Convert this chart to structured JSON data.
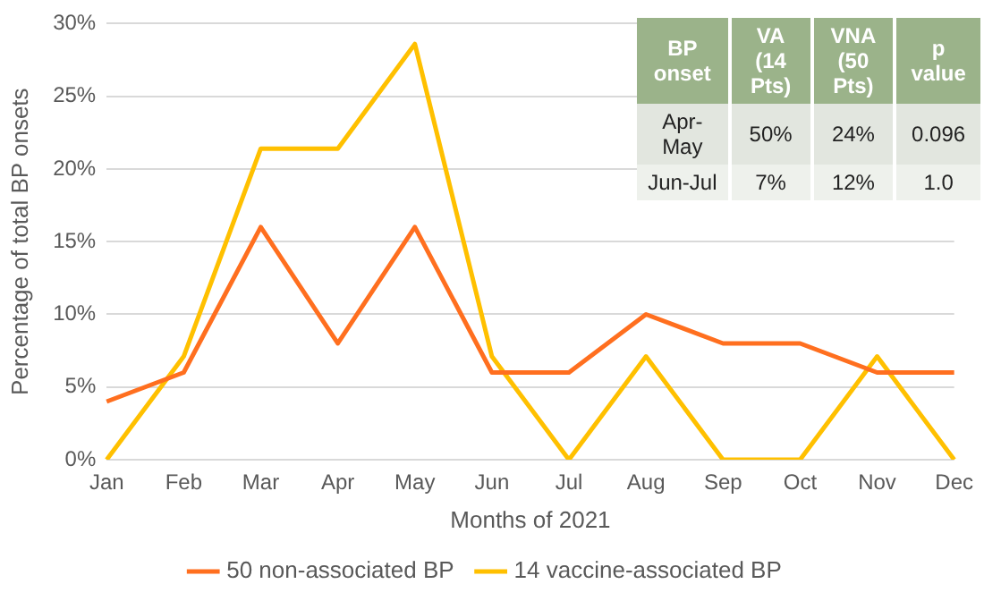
{
  "chart_data": {
    "type": "line",
    "xlabel": "Months of 2021",
    "ylabel": "Percentage of total BP onsets",
    "categories": [
      "Jan",
      "Feb",
      "Mar",
      "Apr",
      "May",
      "Jun",
      "Jul",
      "Aug",
      "Sep",
      "Oct",
      "Nov",
      "Dec"
    ],
    "series": [
      {
        "name": "50 non-associated BP",
        "color": "#ff6f1f",
        "values": [
          4,
          6,
          16,
          8,
          16,
          6,
          6,
          10,
          8,
          8,
          6,
          6
        ]
      },
      {
        "name": "14 vaccine-associated BP",
        "color": "#ffc000",
        "values": [
          0,
          7.1,
          21.4,
          21.4,
          28.6,
          7.1,
          0,
          7.1,
          0,
          0,
          7.1,
          0
        ]
      }
    ],
    "ylim": [
      0,
      30
    ],
    "yticks": [
      {
        "value": 0,
        "label": "0%"
      },
      {
        "value": 5,
        "label": "5%"
      },
      {
        "value": 10,
        "label": "10%"
      },
      {
        "value": 15,
        "label": "15%"
      },
      {
        "value": 20,
        "label": "20%"
      },
      {
        "value": 25,
        "label": "25%"
      },
      {
        "value": 30,
        "label": "30%"
      }
    ],
    "grid": "y",
    "legend": "bottom",
    "marker": "none",
    "line_style": "solid",
    "annotations": [
      "BP onset",
      "VA (14 Pts)",
      "VNA (50 Pts)",
      "p value",
      "Apr-May",
      "50%",
      "24%",
      "0.096",
      "Jun-Jul",
      "7%",
      "12%",
      "1.0"
    ]
  }
}
